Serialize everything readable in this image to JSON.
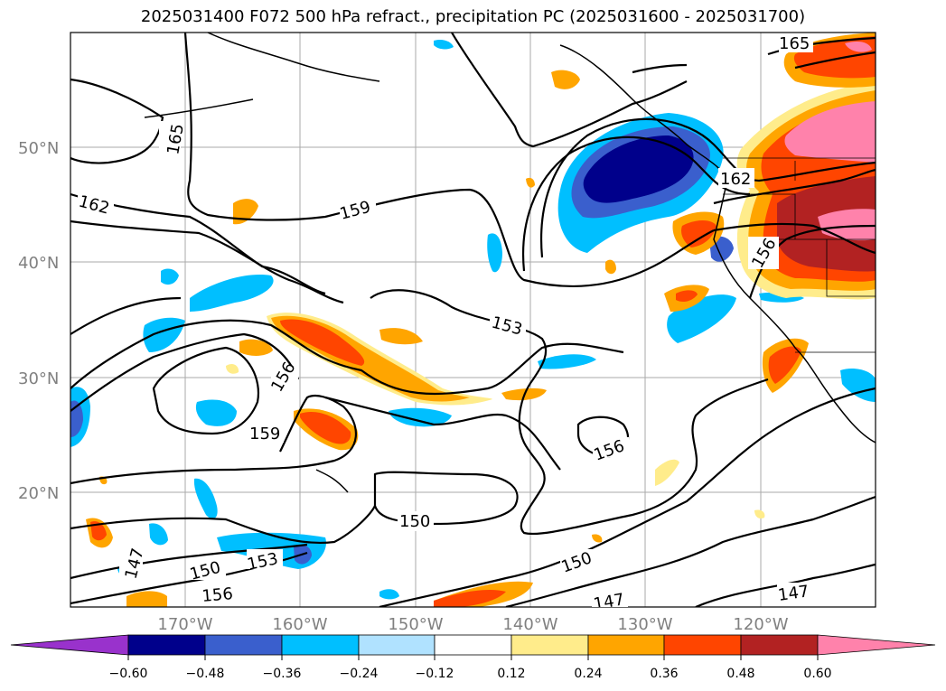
{
  "title": "2025031400 F072 500 hPa refract., precipitation PC (2025031600 - 2025031700)",
  "lat_labels": [
    "50°N",
    "40°N",
    "30°N",
    "20°N"
  ],
  "lon_labels": [
    "170°W",
    "160°W",
    "150°W",
    "140°W",
    "130°W",
    "120°W"
  ],
  "contour_labels": [
    "165",
    "162",
    "159",
    "153",
    "156",
    "159",
    "156",
    "150",
    "150",
    "153",
    "156",
    "147",
    "150",
    "147",
    "156",
    "162",
    "165",
    "147"
  ],
  "colorbar": {
    "ticks": [
      "−0.60",
      "−0.48",
      "−0.36",
      "−0.24",
      "−0.12",
      "0.12",
      "0.24",
      "0.36",
      "0.48",
      "0.60"
    ],
    "colors": {
      "lt_neg060": "#9932cc",
      "neg060_neg048": "#00008b",
      "neg048_neg036": "#3a5fcd",
      "neg036_neg024": "#00bfff",
      "neg024_neg012": "#b0e2ff",
      "neg012_012": "#ffffff",
      "012_024": "#ffec8b",
      "024_036": "#ffa500",
      "036_048": "#ff4500",
      "048_060": "#b22222",
      "gt_060": "#ff82ab"
    }
  }
}
